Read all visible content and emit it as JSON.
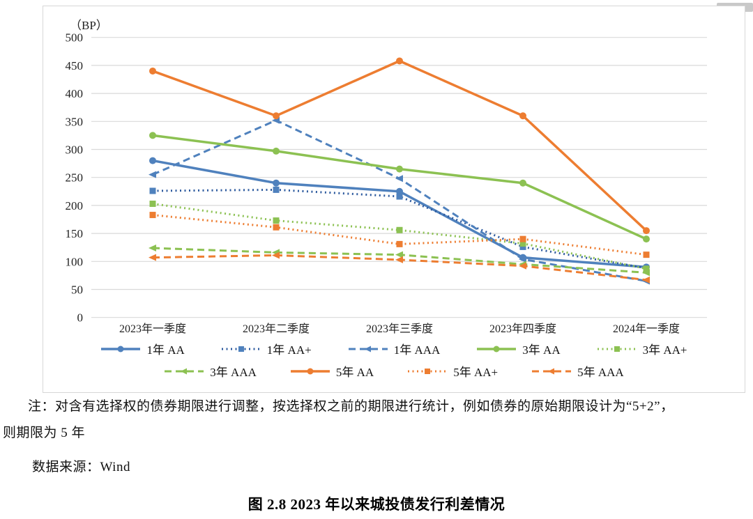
{
  "figure": {
    "y_axis_unit": "（BP）"
  },
  "chart_data": {
    "type": "line",
    "title": "图 2.8  2023 年以来城投债发行利差情况",
    "ylabel": "（BP）",
    "ylim": [
      0,
      500
    ],
    "y_tick_step": 50,
    "y_ticks": [
      500,
      450,
      400,
      350,
      300,
      250,
      200,
      150,
      100,
      50,
      0
    ],
    "grid": true,
    "legend_position": "bottom",
    "categories": [
      "2023年一季度",
      "2023年二季度",
      "2023年三季度",
      "2023年四季度",
      "2024年一季度"
    ],
    "series": [
      {
        "name": "1年 AA",
        "color": "#4F81BD",
        "marker_color": "#4F81BD",
        "style": "solid",
        "marker": "circle",
        "values": [
          280,
          240,
          225,
          107,
          90
        ]
      },
      {
        "name": "1年 AA+",
        "color": "#2E5B9F",
        "marker_color": "#4F81BD",
        "style": "dotted",
        "marker": "square",
        "values": [
          226,
          228,
          216,
          126,
          88
        ]
      },
      {
        "name": "1年 AAA",
        "color": "#4F81BD",
        "marker_color": "#4F81BD",
        "style": "dashed",
        "marker": "triangle",
        "values": [
          255,
          352,
          248,
          104,
          65
        ]
      },
      {
        "name": "3年 AA",
        "color": "#8CC152",
        "marker_color": "#8CC152",
        "style": "solid",
        "marker": "circle",
        "values": [
          325,
          297,
          265,
          240,
          140
        ]
      },
      {
        "name": "3年 AA+",
        "color": "#8CC152",
        "marker_color": "#8CC152",
        "style": "dotted",
        "marker": "square",
        "values": [
          203,
          173,
          156,
          132,
          87
        ]
      },
      {
        "name": "3年 AAA",
        "color": "#8CC152",
        "marker_color": "#8CC152",
        "style": "dashed",
        "marker": "triangle",
        "values": [
          124,
          116,
          112,
          95,
          80
        ]
      },
      {
        "name": "5年 AA",
        "color": "#ED7D31",
        "marker_color": "#ED7D31",
        "style": "solid",
        "marker": "circle",
        "values": [
          440,
          360,
          458,
          360,
          155
        ]
      },
      {
        "name": "5年 AA+",
        "color": "#ED7D31",
        "marker_color": "#ED7D31",
        "style": "dotted",
        "marker": "square",
        "values": [
          183,
          161,
          131,
          140,
          112
        ]
      },
      {
        "name": "5年 AAA",
        "color": "#ED7D31",
        "marker_color": "#ED7D31",
        "style": "dashed",
        "marker": "triangle",
        "values": [
          107,
          111,
          103,
          92,
          67
        ]
      }
    ]
  },
  "note": {
    "line1": "注：对含有选择权的债券期限进行调整，按选择权之前的期限进行统计，例如债券的原始期限设计为“5+2”，",
    "line2": "则期限为 5 年"
  },
  "source": "数据来源：Wind",
  "caption": "图 2.8  2023 年以来城投债发行利差情况"
}
